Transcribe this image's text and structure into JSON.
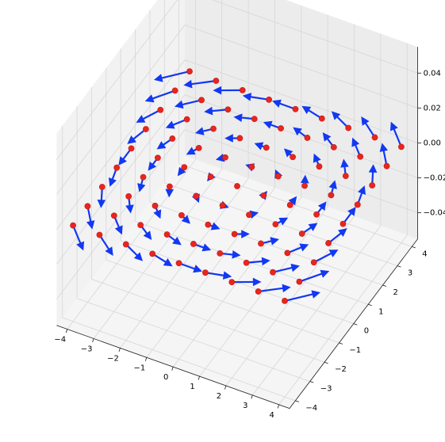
{
  "chart_data": {
    "type": "quiver3d",
    "title": "",
    "xlabel": "",
    "ylabel": "",
    "zlabel": "",
    "x_ticks": [
      "−4",
      "−3",
      "−2",
      "−1",
      "0",
      "1",
      "2",
      "3",
      "4"
    ],
    "y_ticks": [
      "−4",
      "−3",
      "−2",
      "−1",
      "0",
      "1",
      "2",
      "3",
      "4"
    ],
    "z_ticks": [
      "−0.04",
      "−0.02",
      "0.00",
      "0.02",
      "0.04"
    ],
    "x_tick_values": [
      -4,
      -3,
      -2,
      -1,
      0,
      1,
      2,
      3,
      4
    ],
    "y_tick_values": [
      -4,
      -3,
      -2,
      -1,
      0,
      1,
      2,
      3,
      4
    ],
    "z_tick_values": [
      -0.04,
      -0.02,
      0.0,
      0.02,
      0.04
    ],
    "xlim": [
      -4.4,
      4.4
    ],
    "ylim": [
      -4.4,
      4.4
    ],
    "zlim": [
      -0.055,
      0.055
    ],
    "grid": true,
    "points": {
      "x": [
        -4,
        -3,
        -2,
        -1,
        0,
        1,
        2,
        3,
        4
      ],
      "y": [
        -4,
        -3,
        -2,
        -1,
        0,
        1,
        2,
        3,
        4
      ],
      "z": 0,
      "marker_color": "#e8251f"
    },
    "vectors": {
      "formula": "(u, v, w) = (-y, x, 0) scaled so longest arrow spans about 1.2 units",
      "color": "#1238f2"
    },
    "colors": {
      "pane_left": "#f2f2f2",
      "pane_back": "#ececec",
      "pane_floor": "#f5f5f5",
      "grid": "#d6d6d6",
      "axis_line": "#1a1a1a"
    }
  }
}
